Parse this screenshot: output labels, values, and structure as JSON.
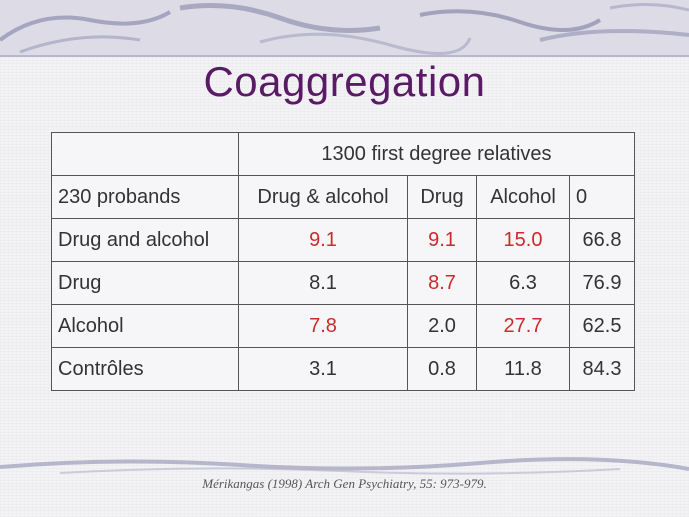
{
  "slide": {
    "title": "Coaggregation",
    "citation": "Mérikangas (1998) Arch Gen Psychiatry, 55: 973-979."
  },
  "table": {
    "group_header": "1300 first degree relatives",
    "row_header_label": "230 probands",
    "columns": [
      "Drug & alcohol",
      "Drug",
      "Alcohol",
      "0"
    ],
    "rows": [
      {
        "label": "Drug and alcohol",
        "values": [
          "9.1",
          "9.1",
          "15.0",
          "66.8"
        ],
        "highlighted": [
          true,
          true,
          true,
          false
        ]
      },
      {
        "label": "Drug",
        "values": [
          "8.1",
          "8.7",
          "6.3",
          "76.9"
        ],
        "highlighted": [
          false,
          true,
          false,
          false
        ]
      },
      {
        "label": "Alcohol",
        "values": [
          "7.8",
          "2.0",
          "27.7",
          "62.5"
        ],
        "highlighted": [
          true,
          false,
          true,
          false
        ]
      },
      {
        "label": "Contrôles",
        "values": [
          "3.1",
          "0.8",
          "11.8",
          "84.3"
        ],
        "highlighted": [
          false,
          false,
          false,
          false
        ]
      }
    ]
  },
  "colors": {
    "title": "#5a1a66",
    "highlight": "#cc2a2a",
    "text": "#333333"
  }
}
